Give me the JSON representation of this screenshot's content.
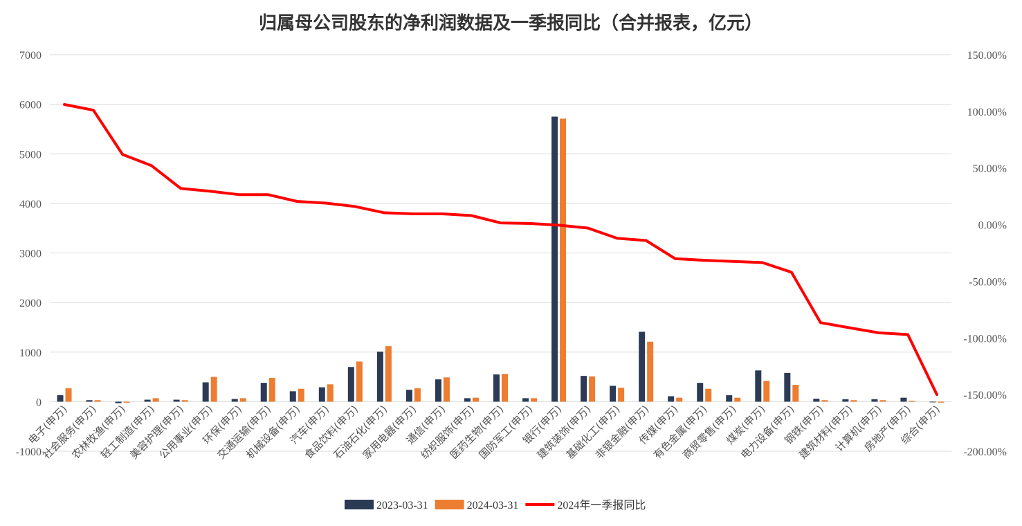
{
  "chart_data": {
    "type": "bar",
    "title": "归属母公司股东的净利润数据及一季报同比（合并报表，亿元）",
    "categories": [
      "电子(申万)",
      "社会服务(申万)",
      "农林牧渔(申万)",
      "轻工制造(申万)",
      "美容护理(申万)",
      "公用事业(申万)",
      "环保(申万)",
      "交通运输(申万)",
      "机械设备(申万)",
      "汽车(申万)",
      "食品饮料(申万)",
      "石油石化(申万)",
      "家用电器(申万)",
      "通信(申万)",
      "纺织服饰(申万)",
      "医药生物(申万)",
      "国防军工(申万)",
      "银行(申万)",
      "建筑装饰(申万)",
      "基础化工(申万)",
      "非银金融(申万)",
      "传媒(申万)",
      "有色金属(申万)",
      "商贸零售(申万)",
      "煤炭(申万)",
      "电力设备(申万)",
      "钢铁(申万)",
      "建筑材料(申万)",
      "计算机(申万)",
      "房地产(申万)",
      "综合(申万)"
    ],
    "series": [
      {
        "name": "2023-03-31",
        "type": "bar",
        "axis": "left",
        "color": "#2b3a55",
        "values": [
          130,
          30,
          -30,
          40,
          40,
          390,
          55,
          380,
          210,
          290,
          700,
          1010,
          240,
          450,
          70,
          550,
          70,
          5750,
          520,
          320,
          1410,
          110,
          380,
          130,
          630,
          580,
          60,
          50,
          50,
          80,
          -10
        ]
      },
      {
        "name": "2024-03-31",
        "type": "bar",
        "axis": "left",
        "color": "#ed7d31",
        "values": [
          270,
          30,
          -20,
          70,
          30,
          500,
          70,
          480,
          260,
          350,
          810,
          1120,
          270,
          490,
          80,
          560,
          70,
          5710,
          510,
          280,
          1210,
          80,
          260,
          80,
          420,
          340,
          30,
          30,
          30,
          20,
          -20
        ]
      },
      {
        "name": "2024年一季报同比",
        "type": "line",
        "axis": "right",
        "color": "#ff0000",
        "values": [
          106,
          101,
          62,
          52,
          32,
          29.5,
          26.5,
          26.5,
          20.5,
          19,
          16,
          10.5,
          9.5,
          9.5,
          8,
          1.5,
          1,
          -0.5,
          -3,
          -12,
          -14,
          -30,
          -31.5,
          -32.5,
          -33.5,
          -42,
          -86.5,
          -91,
          -95.5,
          -97,
          -150
        ]
      }
    ],
    "y_left": {
      "min": -1000,
      "max": 7000,
      "ticks": [
        "-1000",
        "0",
        "1000",
        "2000",
        "3000",
        "4000",
        "5000",
        "6000",
        "7000"
      ]
    },
    "y_right": {
      "min": -200,
      "max": 150,
      "ticks": [
        "-200.00%",
        "-150.00%",
        "-100.00%",
        "-50.00%",
        "0.00%",
        "50.00%",
        "100.00%",
        "150.00%"
      ]
    },
    "grid": true,
    "legend_position": "bottom"
  }
}
